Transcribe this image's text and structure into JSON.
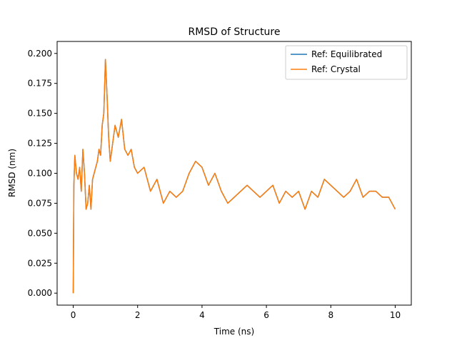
{
  "chart_data": {
    "type": "line",
    "title": "RMSD of Structure",
    "xlabel": "Time (ns)",
    "ylabel": "RMSD (nm)",
    "xlim": [
      -0.5,
      10.5
    ],
    "ylim": [
      -0.01,
      0.21
    ],
    "xticks": [
      0,
      2,
      4,
      6,
      8,
      10
    ],
    "xtick_labels": [
      "0",
      "2",
      "4",
      "6",
      "8",
      "10"
    ],
    "yticks": [
      0.0,
      0.025,
      0.05,
      0.075,
      0.1,
      0.125,
      0.15,
      0.175,
      0.2
    ],
    "ytick_labels": [
      "0.000",
      "0.025",
      "0.050",
      "0.075",
      "0.100",
      "0.125",
      "0.150",
      "0.175",
      "0.200"
    ],
    "grid": false,
    "legend": {
      "position": "top-right"
    },
    "series": [
      {
        "name": "Ref: Equilibrated",
        "color": "#1f77b4",
        "x": [
          0,
          0.02,
          0.05,
          0.1,
          0.15,
          0.2,
          0.25,
          0.3,
          0.35,
          0.4,
          0.45,
          0.5,
          0.55,
          0.6,
          0.65,
          0.7,
          0.75,
          0.8,
          0.85,
          0.9,
          0.95,
          1.0,
          1.05,
          1.1,
          1.15,
          1.2,
          1.3,
          1.4,
          1.5,
          1.6,
          1.7,
          1.8,
          1.9,
          2.0,
          2.2,
          2.4,
          2.6,
          2.8,
          3.0,
          3.2,
          3.4,
          3.6,
          3.8,
          4.0,
          4.2,
          4.4,
          4.6,
          4.8,
          5.0,
          5.2,
          5.4,
          5.6,
          5.8,
          6.0,
          6.2,
          6.4,
          6.6,
          6.8,
          7.0,
          7.2,
          7.4,
          7.6,
          7.8,
          8.0,
          8.2,
          8.4,
          8.6,
          8.8,
          9.0,
          9.2,
          9.4,
          9.6,
          9.8,
          10.0
        ],
        "y": [
          0.0,
          0.09,
          0.115,
          0.1,
          0.095,
          0.105,
          0.085,
          0.12,
          0.1,
          0.07,
          0.075,
          0.09,
          0.07,
          0.095,
          0.1,
          0.105,
          0.11,
          0.12,
          0.115,
          0.14,
          0.15,
          0.195,
          0.165,
          0.13,
          0.11,
          0.12,
          0.14,
          0.13,
          0.145,
          0.12,
          0.115,
          0.12,
          0.105,
          0.1,
          0.105,
          0.085,
          0.095,
          0.075,
          0.085,
          0.08,
          0.085,
          0.1,
          0.11,
          0.105,
          0.09,
          0.1,
          0.085,
          0.075,
          0.08,
          0.085,
          0.09,
          0.085,
          0.08,
          0.085,
          0.09,
          0.075,
          0.085,
          0.08,
          0.085,
          0.07,
          0.085,
          0.08,
          0.095,
          0.09,
          0.085,
          0.08,
          0.085,
          0.095,
          0.08,
          0.085,
          0.085,
          0.08,
          0.08,
          0.07
        ]
      },
      {
        "name": "Ref: Crystal",
        "color": "#ff7f0e",
        "x": [
          0,
          0.02,
          0.05,
          0.1,
          0.15,
          0.2,
          0.25,
          0.3,
          0.35,
          0.4,
          0.45,
          0.5,
          0.55,
          0.6,
          0.65,
          0.7,
          0.75,
          0.8,
          0.85,
          0.9,
          0.95,
          1.0,
          1.05,
          1.1,
          1.15,
          1.2,
          1.3,
          1.4,
          1.5,
          1.6,
          1.7,
          1.8,
          1.9,
          2.0,
          2.2,
          2.4,
          2.6,
          2.8,
          3.0,
          3.2,
          3.4,
          3.6,
          3.8,
          4.0,
          4.2,
          4.4,
          4.6,
          4.8,
          5.0,
          5.2,
          5.4,
          5.6,
          5.8,
          6.0,
          6.2,
          6.4,
          6.6,
          6.8,
          7.0,
          7.2,
          7.4,
          7.6,
          7.8,
          8.0,
          8.2,
          8.4,
          8.6,
          8.8,
          9.0,
          9.2,
          9.4,
          9.6,
          9.8,
          10.0
        ],
        "y": [
          0.0,
          0.09,
          0.115,
          0.1,
          0.095,
          0.105,
          0.085,
          0.12,
          0.1,
          0.07,
          0.075,
          0.09,
          0.07,
          0.095,
          0.1,
          0.105,
          0.11,
          0.12,
          0.115,
          0.14,
          0.15,
          0.195,
          0.165,
          0.13,
          0.11,
          0.12,
          0.14,
          0.13,
          0.145,
          0.12,
          0.115,
          0.12,
          0.105,
          0.1,
          0.105,
          0.085,
          0.095,
          0.075,
          0.085,
          0.08,
          0.085,
          0.1,
          0.11,
          0.105,
          0.09,
          0.1,
          0.085,
          0.075,
          0.08,
          0.085,
          0.09,
          0.085,
          0.08,
          0.085,
          0.09,
          0.075,
          0.085,
          0.08,
          0.085,
          0.07,
          0.085,
          0.08,
          0.095,
          0.09,
          0.085,
          0.08,
          0.085,
          0.095,
          0.08,
          0.085,
          0.085,
          0.08,
          0.08,
          0.07
        ]
      }
    ]
  }
}
